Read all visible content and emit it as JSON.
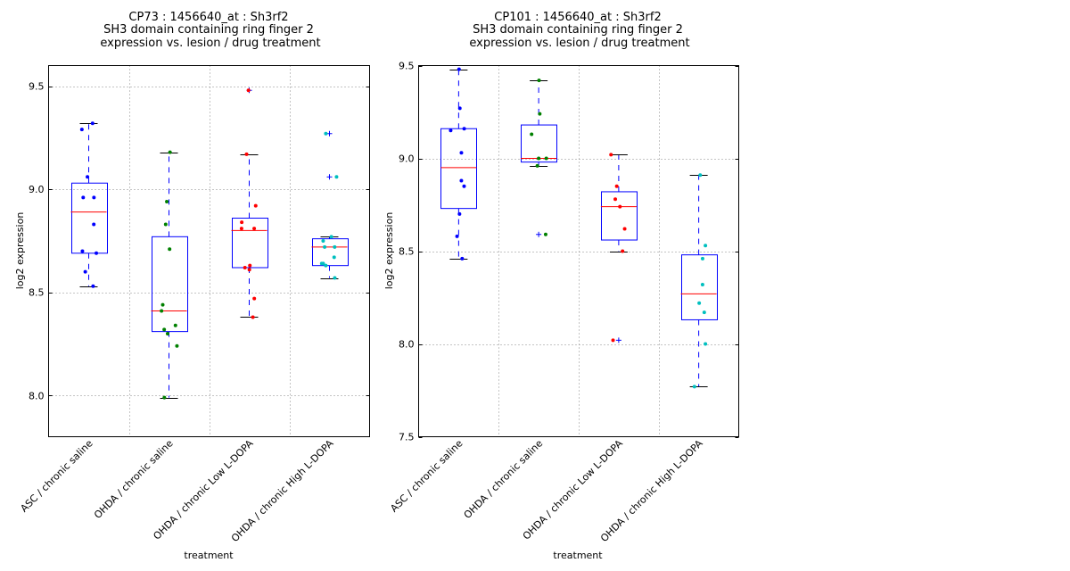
{
  "chart_data": [
    {
      "type": "box",
      "title_lines": [
        "CP73 : 1456640_at : Sh3rf2",
        "SH3 domain containing ring finger 2",
        "expression vs. lesion / drug treatment"
      ],
      "xlabel": "treatment",
      "ylabel": "log2 expression",
      "ylim": [
        7.8,
        9.6
      ],
      "yticks": [
        8.0,
        8.5,
        9.0,
        9.5
      ],
      "ytick_labels": [
        "8.0",
        "8.5",
        "9.0",
        "9.5"
      ],
      "grid": true,
      "categories": [
        "ASC / chronic saline",
        "OHDA / chronic saline",
        "OHDA / chronic Low L-DOPA",
        "OHDA / chronic High L-DOPA"
      ],
      "boxes": [
        {
          "whisker_low": 8.53,
          "q1": 8.69,
          "median": 8.89,
          "q3": 9.03,
          "whisker_high": 9.32,
          "outliers": [],
          "color": "#0000ff",
          "points": [
            9.32,
            9.29,
            9.06,
            8.96,
            8.96,
            8.83,
            8.7,
            8.69,
            8.6,
            8.53
          ]
        },
        {
          "whisker_low": 7.99,
          "q1": 8.31,
          "median": 8.41,
          "q3": 8.77,
          "whisker_high": 9.18,
          "outliers": [],
          "color": "#008000",
          "points": [
            9.18,
            8.94,
            8.83,
            8.71,
            8.44,
            8.41,
            8.34,
            8.32,
            8.3,
            8.24,
            7.99
          ]
        },
        {
          "whisker_low": 8.38,
          "q1": 8.62,
          "median": 8.8,
          "q3": 8.86,
          "whisker_high": 9.17,
          "outliers": [
            9.48
          ],
          "color": "#ff0000",
          "points": [
            9.48,
            9.17,
            8.92,
            8.84,
            8.81,
            8.81,
            8.63,
            8.62,
            8.61,
            8.47,
            8.38
          ]
        },
        {
          "whisker_low": 8.57,
          "q1": 8.63,
          "median": 8.72,
          "q3": 8.76,
          "whisker_high": 8.77,
          "outliers": [
            9.27,
            9.06
          ],
          "color": "#00bfbf",
          "points": [
            9.27,
            9.06,
            8.77,
            8.75,
            8.72,
            8.72,
            8.67,
            8.64,
            8.64,
            8.63,
            8.57
          ]
        }
      ]
    },
    {
      "type": "box",
      "title_lines": [
        "CP101 : 1456640_at : Sh3rf2",
        "SH3 domain containing ring finger 2",
        "expression vs. lesion / drug treatment"
      ],
      "xlabel": "treatment",
      "ylabel": "log2 expression",
      "ylim": [
        7.5,
        9.5
      ],
      "yticks": [
        7.5,
        8.0,
        8.5,
        9.0,
        9.5
      ],
      "ytick_labels": [
        "7.5",
        "8.0",
        "8.5",
        "9.0",
        "9.5"
      ],
      "grid": true,
      "categories": [
        "ASC / chronic saline",
        "OHDA / chronic saline",
        "OHDA / chronic Low L-DOPA",
        "OHDA / chronic High L-DOPA"
      ],
      "boxes": [
        {
          "whisker_low": 8.46,
          "q1": 8.73,
          "median": 8.95,
          "q3": 9.16,
          "whisker_high": 9.48,
          "outliers": [],
          "color": "#0000ff",
          "points": [
            9.48,
            9.27,
            9.16,
            9.15,
            9.03,
            8.88,
            8.85,
            8.7,
            8.58,
            8.46
          ]
        },
        {
          "whisker_low": 8.96,
          "q1": 8.98,
          "median": 9.0,
          "q3": 9.18,
          "whisker_high": 9.42,
          "outliers": [
            8.59
          ],
          "color": "#008000",
          "points": [
            9.42,
            9.24,
            9.13,
            9.0,
            9.0,
            8.96,
            8.59
          ]
        },
        {
          "whisker_low": 8.5,
          "q1": 8.56,
          "median": 8.74,
          "q3": 8.82,
          "whisker_high": 9.02,
          "outliers": [
            8.02
          ],
          "color": "#ff0000",
          "points": [
            9.02,
            8.85,
            8.78,
            8.74,
            8.62,
            8.5,
            8.02
          ]
        },
        {
          "whisker_low": 7.77,
          "q1": 8.13,
          "median": 8.27,
          "q3": 8.48,
          "whisker_high": 8.91,
          "outliers": [],
          "color": "#00bfbf",
          "points": [
            8.91,
            8.53,
            8.46,
            8.32,
            8.22,
            8.17,
            8.0,
            7.77
          ]
        }
      ]
    }
  ]
}
